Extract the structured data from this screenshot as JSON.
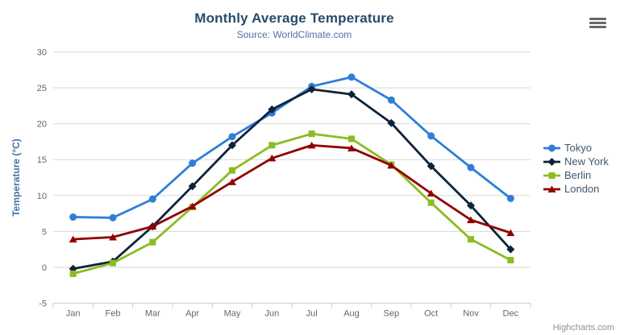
{
  "chart_data": {
    "type": "line",
    "title": "Monthly Average Temperature",
    "subtitle": "Source: WorldClimate.com",
    "categories": [
      "Jan",
      "Feb",
      "Mar",
      "Apr",
      "May",
      "Jun",
      "Jul",
      "Aug",
      "Sep",
      "Oct",
      "Nov",
      "Dec"
    ],
    "xlabel": "",
    "ylabel": "Temperature (°C)",
    "ylim": [
      -5,
      30
    ],
    "yticks": [
      -5,
      0,
      5,
      10,
      15,
      20,
      25,
      30
    ],
    "grid": true,
    "legend_position": "right",
    "credits": "Highcharts.com",
    "series": [
      {
        "name": "Tokyo",
        "color": "#2f7ed8",
        "marker": "circle",
        "values": [
          7.0,
          6.9,
          9.5,
          14.5,
          18.2,
          21.5,
          25.2,
          26.5,
          23.3,
          18.3,
          13.9,
          9.6
        ]
      },
      {
        "name": "New York",
        "color": "#0d233a",
        "marker": "diamond",
        "values": [
          -0.2,
          0.8,
          5.7,
          11.3,
          17.0,
          22.0,
          24.8,
          24.1,
          20.1,
          14.1,
          8.6,
          2.5
        ]
      },
      {
        "name": "Berlin",
        "color": "#8bbc21",
        "marker": "square",
        "values": [
          -0.9,
          0.6,
          3.5,
          8.4,
          13.5,
          17.0,
          18.6,
          17.9,
          14.3,
          9.0,
          3.9,
          1.0
        ]
      },
      {
        "name": "London",
        "color": "#910000",
        "marker": "triangle",
        "values": [
          3.9,
          4.2,
          5.7,
          8.5,
          11.9,
          15.2,
          17.0,
          16.6,
          14.2,
          10.3,
          6.6,
          4.8
        ]
      }
    ],
    "colors": {
      "grid": "#d8d8d8",
      "axis_line": "#c0d0e0",
      "tick_label": "#666666",
      "axis_title": "#4572a7",
      "title": "#274b6d",
      "subtitle": "#4d759e",
      "legend_text": "#3e576f",
      "credits": "#909090",
      "menu_icon": "#666666"
    }
  }
}
